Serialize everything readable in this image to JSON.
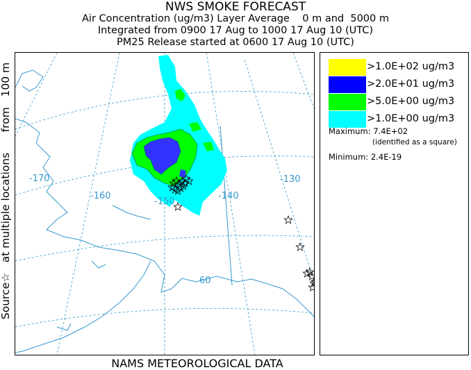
{
  "header": {
    "title": "NWS SMOKE FORECAST",
    "line1": "Air Concentration (ug/m3) Layer Average    0 m and  5000 m",
    "line2": "Integrated from 0900 17 Aug to 1000 17 Aug 10 (UTC)",
    "line3": "PM25 Release started at 0600 17 Aug 10 (UTC)"
  },
  "side_label": "Source☆   at multiple locations      from   100 m",
  "footer": "NAMS METEOROLOGICAL DATA",
  "map": {
    "longitude_labels": [
      "-170",
      "-160",
      "-150",
      "-140",
      "-130"
    ],
    "latitude_labels": [
      "60"
    ],
    "colors": {
      "coast": "#3399cc",
      "grid": "#3399cc",
      "border": "#3399cc"
    }
  },
  "legend": {
    "items": [
      {
        "label": ">1.0E+02 ug/m3",
        "color": "#ffff00"
      },
      {
        "label": ">2.0E+01 ug/m3",
        "color": "#0000ff"
      },
      {
        "label": ">5.0E+00 ug/m3",
        "color": "#00ff00"
      },
      {
        "label": ">1.0E+00 ug/m3",
        "color": "#00ffff"
      }
    ],
    "maximum": "Maximum: 7.4E+02",
    "maximum_note": "(identified as a square)",
    "minimum": "Minimum: 2.4E-19"
  }
}
